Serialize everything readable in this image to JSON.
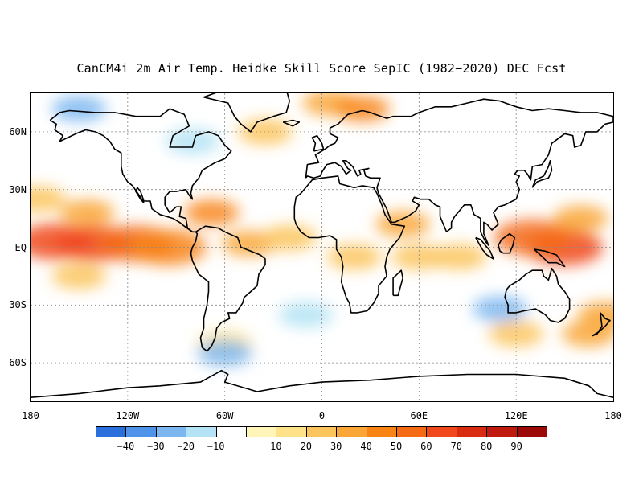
{
  "title": "CanCM4i 2m Air Temp. Heidke Skill Score SepIC (1982−2020) DEC Fcst",
  "map": {
    "projection": "cylindrical-equidistant",
    "lon_range": [
      -180,
      180
    ],
    "lat_range": [
      -80,
      80
    ],
    "gridlines": "dotted",
    "lat_ticks": [
      {
        "label": "60N",
        "lat": 60
      },
      {
        "label": "30N",
        "lat": 30
      },
      {
        "label": "EQ",
        "lat": 0
      },
      {
        "label": "30S",
        "lat": -30
      },
      {
        "label": "60S",
        "lat": -60
      }
    ],
    "lon_ticks": [
      {
        "label": "180",
        "lon": -180
      },
      {
        "label": "120W",
        "lon": -120
      },
      {
        "label": "60W",
        "lon": -60
      },
      {
        "label": "0",
        "lon": 0
      },
      {
        "label": "60E",
        "lon": 60
      },
      {
        "label": "120E",
        "lon": 120
      },
      {
        "label": "180",
        "lon": 180
      }
    ]
  },
  "colorbar": {
    "colors": [
      "#2a6fdc",
      "#4f94e8",
      "#7db7f0",
      "#b3e3f5",
      "#ffffff",
      "#fff5b8",
      "#fde28a",
      "#fbc45c",
      "#f9a636",
      "#f88414",
      "#f56a14",
      "#f0481a",
      "#d92a12",
      "#c01a10",
      "#9c0a08"
    ],
    "labels": [
      "−40",
      "−30",
      "−20",
      "−10",
      "10",
      "20",
      "30",
      "40",
      "50",
      "60",
      "70",
      "80",
      "90"
    ]
  },
  "chart_data": {
    "type": "heatmap",
    "variable": "Heidke Skill Score",
    "levels": [
      -50,
      -40,
      -30,
      -20,
      -10,
      10,
      20,
      30,
      40,
      50,
      60,
      70,
      80,
      90,
      100
    ],
    "regions": [
      {
        "lon": -165,
        "lat": 3,
        "hss": 75
      },
      {
        "lon": -140,
        "lat": 2,
        "hss": 72
      },
      {
        "lon": -115,
        "lat": 2,
        "hss": 68
      },
      {
        "lon": -95,
        "lat": 0,
        "hss": 55
      },
      {
        "lon": -145,
        "lat": 18,
        "hss": 40
      },
      {
        "lon": -150,
        "lat": -15,
        "hss": 35
      },
      {
        "lon": -175,
        "lat": 25,
        "hss": 30
      },
      {
        "lon": -68,
        "lat": 18,
        "hss": 50
      },
      {
        "lon": -45,
        "lat": 2,
        "hss": 40
      },
      {
        "lon": -20,
        "lat": 5,
        "hss": 35
      },
      {
        "lon": -35,
        "lat": 60,
        "hss": 30
      },
      {
        "lon": 5,
        "lat": 75,
        "hss": 45
      },
      {
        "lon": 25,
        "lat": 72,
        "hss": 50
      },
      {
        "lon": 50,
        "lat": 12,
        "hss": 45
      },
      {
        "lon": 60,
        "lat": -5,
        "hss": 35
      },
      {
        "lon": 85,
        "lat": -5,
        "hss": 30
      },
      {
        "lon": 150,
        "lat": 0,
        "hss": 72
      },
      {
        "lon": 130,
        "lat": 5,
        "hss": 60
      },
      {
        "lon": 160,
        "lat": 15,
        "hss": 40
      },
      {
        "lon": 175,
        "lat": -35,
        "hss": 40
      },
      {
        "lon": 165,
        "lat": -45,
        "hss": 45
      },
      {
        "lon": 120,
        "lat": -45,
        "hss": 30
      },
      {
        "lon": 20,
        "lat": -5,
        "hss": 30
      },
      {
        "lon": -60,
        "lat": -50,
        "hss": 25
      },
      {
        "lon": -80,
        "lat": 55,
        "hss": -20
      },
      {
        "lon": -60,
        "lat": -55,
        "hss": -30
      },
      {
        "lon": -10,
        "lat": -35,
        "hss": -20
      },
      {
        "lon": 110,
        "lat": -32,
        "hss": -25
      },
      {
        "lon": -150,
        "lat": 72,
        "hss": -30
      }
    ]
  }
}
